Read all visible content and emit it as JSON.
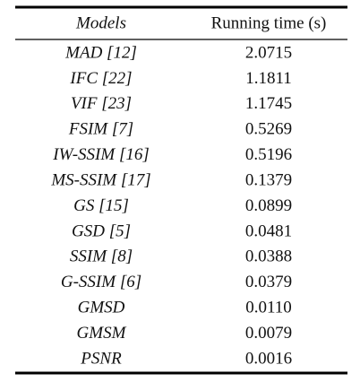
{
  "table": {
    "header": [
      "Models",
      "Running time (s)"
    ],
    "rows": [
      [
        "MAD [12]",
        "2.0715"
      ],
      [
        "IFC [22]",
        "1.1811"
      ],
      [
        "VIF [23]",
        "1.1745"
      ],
      [
        "FSIM [7]",
        "0.5269"
      ],
      [
        "IW-SSIM [16]",
        "0.5196"
      ],
      [
        "MS-SSIM [17]",
        "0.1379"
      ],
      [
        "GS [15]",
        "0.0899"
      ],
      [
        "GSD [5]",
        "0.0481"
      ],
      [
        "SSIM [8]",
        "0.0388"
      ],
      [
        "G-SSIM [6]",
        "0.0379"
      ],
      [
        "GMSD",
        "0.0110"
      ],
      [
        "GMSM",
        "0.0079"
      ],
      [
        "PSNR",
        "0.0016"
      ]
    ]
  }
}
